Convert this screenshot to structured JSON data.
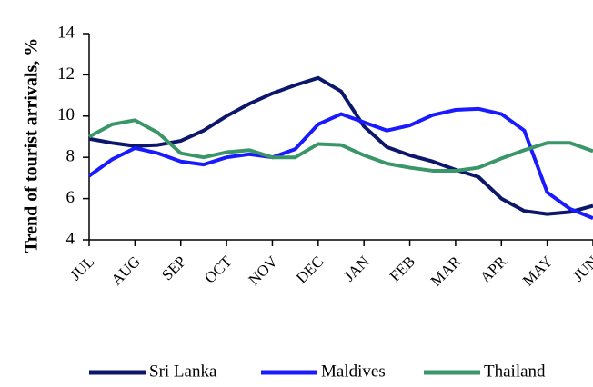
{
  "chart_data": {
    "type": "line",
    "y_label": "Trend of tourist arrivals, %",
    "categories": [
      "JUL",
      null,
      "AUG",
      null,
      "SEP",
      null,
      "OCT",
      null,
      "NOV",
      null,
      "DEC",
      null,
      "JAN",
      null,
      "FEB",
      null,
      "MAR",
      null,
      "APR",
      null,
      "MAY",
      null,
      "JUN"
    ],
    "series": [
      {
        "name": "Sri Lanka",
        "color": "#0c176b",
        "values": [
          8.9,
          8.7,
          8.55,
          8.6,
          8.8,
          9.3,
          10.0,
          10.6,
          11.1,
          11.5,
          11.85,
          11.2,
          9.5,
          8.5,
          8.1,
          7.8,
          7.4,
          7.05,
          6.0,
          5.4,
          5.25,
          5.35,
          5.65
        ]
      },
      {
        "name": "Maldives",
        "color": "#1a1aff",
        "values": [
          7.1,
          7.9,
          8.45,
          8.2,
          7.8,
          7.65,
          8.0,
          8.15,
          8.0,
          8.4,
          9.6,
          10.1,
          9.7,
          9.3,
          9.55,
          10.05,
          10.3,
          10.35,
          10.1,
          9.3,
          6.3,
          5.5,
          5.05
        ]
      },
      {
        "name": "Thailand",
        "color": "#3a9668",
        "values": [
          9.0,
          9.6,
          9.8,
          9.2,
          8.2,
          8.0,
          8.25,
          8.35,
          8.0,
          8.0,
          8.65,
          8.6,
          8.1,
          7.7,
          7.5,
          7.35,
          7.35,
          7.5,
          7.95,
          8.35,
          8.7,
          8.7,
          8.3
        ]
      }
    ],
    "ylim": [
      4,
      14
    ],
    "yticks": [
      4,
      6,
      8,
      10,
      12,
      14
    ],
    "legend": "bottom"
  }
}
